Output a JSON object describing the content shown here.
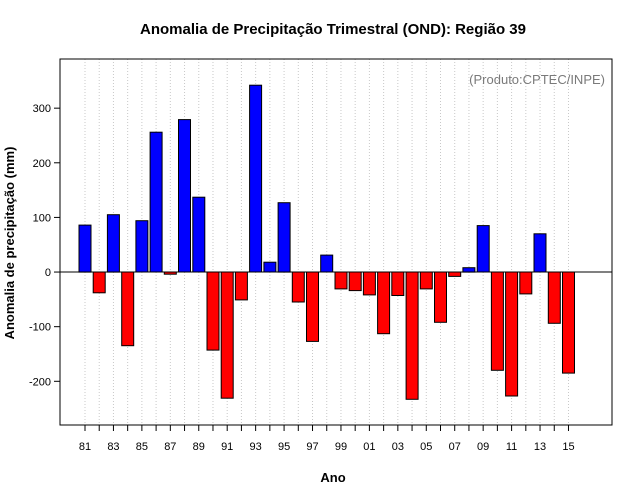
{
  "chart_data": {
    "type": "bar",
    "title": "Anomalia de Precipitação Trimestral (OND): Região 39",
    "xlabel": "Ano",
    "ylabel": "Anomalia de precipitação (mm)",
    "annotation": "(Produto:CPTEC/INPE)",
    "ylim": [
      -280,
      390
    ],
    "y_ticks": [
      -200,
      -100,
      0,
      100,
      200,
      300
    ],
    "years": [
      "81",
      "82",
      "83",
      "84",
      "85",
      "86",
      "87",
      "88",
      "89",
      "90",
      "91",
      "92",
      "93",
      "94",
      "95",
      "96",
      "97",
      "98",
      "99",
      "00",
      "01",
      "02",
      "03",
      "04",
      "05",
      "06",
      "07",
      "08",
      "09",
      "10",
      "11",
      "12",
      "13",
      "14",
      "15"
    ],
    "x_tick_labels": [
      "81",
      "83",
      "85",
      "87",
      "89",
      "91",
      "93",
      "95",
      "97",
      "99",
      "01",
      "03",
      "05",
      "07",
      "09",
      "11",
      "13",
      "15"
    ],
    "values": [
      86,
      -38,
      105,
      -135,
      94,
      256,
      -4,
      279,
      137,
      -143,
      -231,
      -51,
      342,
      18,
      127,
      -55,
      -127,
      31,
      -31,
      -34,
      -42,
      -113,
      -43,
      -233,
      -31,
      -92,
      -8,
      8,
      85,
      -180,
      -227,
      -40,
      70,
      -94,
      -185
    ],
    "positive_color": "#0000ff",
    "negative_color": "#ff0000",
    "grid": true,
    "grid_orientation": "vertical"
  }
}
